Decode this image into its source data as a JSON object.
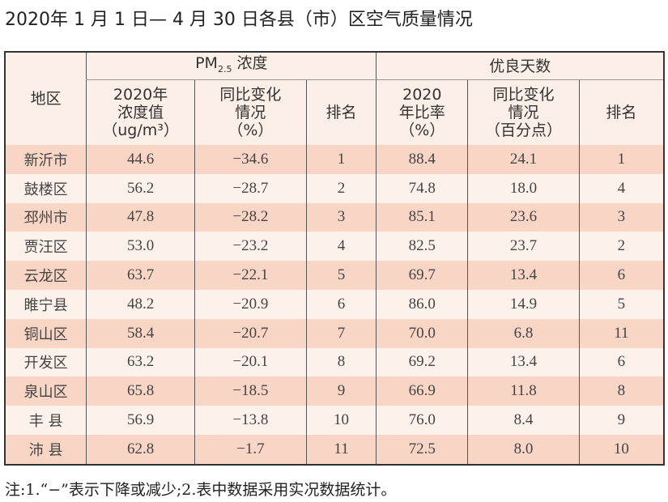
{
  "title": "2020年 1 月 1 日— 4 月 30 日各县（市）区空气质量情况",
  "header": {
    "region": "地区",
    "pm_group": "PM",
    "pm_sub": "2.5",
    "pm_suffix": " 浓度",
    "good_group": "优良天数",
    "pm_value": [
      "2020年",
      "浓度值",
      "（ug/m³）"
    ],
    "pm_change": [
      "同比变化",
      "情况",
      "（%）"
    ],
    "pm_rank": "排名",
    "good_rate": [
      "2020",
      "年比率",
      "（%）"
    ],
    "good_change": [
      "同比变化",
      "情况",
      "（百分点）"
    ],
    "good_rank": "排名"
  },
  "rows": [
    [
      "新沂市",
      "44.6",
      "−34.6",
      "1",
      "88.4",
      "24.1",
      "1"
    ],
    [
      "鼓楼区",
      "56.2",
      "−28.7",
      "2",
      "74.8",
      "18.0",
      "4"
    ],
    [
      "邳州市",
      "47.8",
      "−28.2",
      "3",
      "85.1",
      "23.6",
      "3"
    ],
    [
      "贾汪区",
      "53.0",
      "−23.2",
      "4",
      "82.5",
      "23.7",
      "2"
    ],
    [
      "云龙区",
      "63.7",
      "−22.1",
      "5",
      "69.7",
      "13.4",
      "6"
    ],
    [
      "睢宁县",
      "48.2",
      "−20.9",
      "6",
      "86.0",
      "14.9",
      "5"
    ],
    [
      "铜山区",
      "58.4",
      "−20.7",
      "7",
      "70.0",
      "6.8",
      "11"
    ],
    [
      "开发区",
      "63.2",
      "−20.1",
      "8",
      "69.2",
      "13.4",
      "6"
    ],
    [
      "泉山区",
      "65.8",
      "−18.5",
      "9",
      "66.9",
      "11.8",
      "8"
    ],
    [
      "丰 县",
      "56.9",
      "−13.8",
      "10",
      "76.0",
      "8.4",
      "9"
    ],
    [
      "沛 县",
      "62.8",
      "−1.7",
      "11",
      "72.5",
      "8.0",
      "10"
    ]
  ],
  "note": "注:1.“−”表示下降或减少;2.表中数据采用实况数据统计。",
  "colors": {
    "header_bg": "#fcefe7",
    "odd_row": "#f8d5c5",
    "even_row": "#fdf2eb"
  }
}
